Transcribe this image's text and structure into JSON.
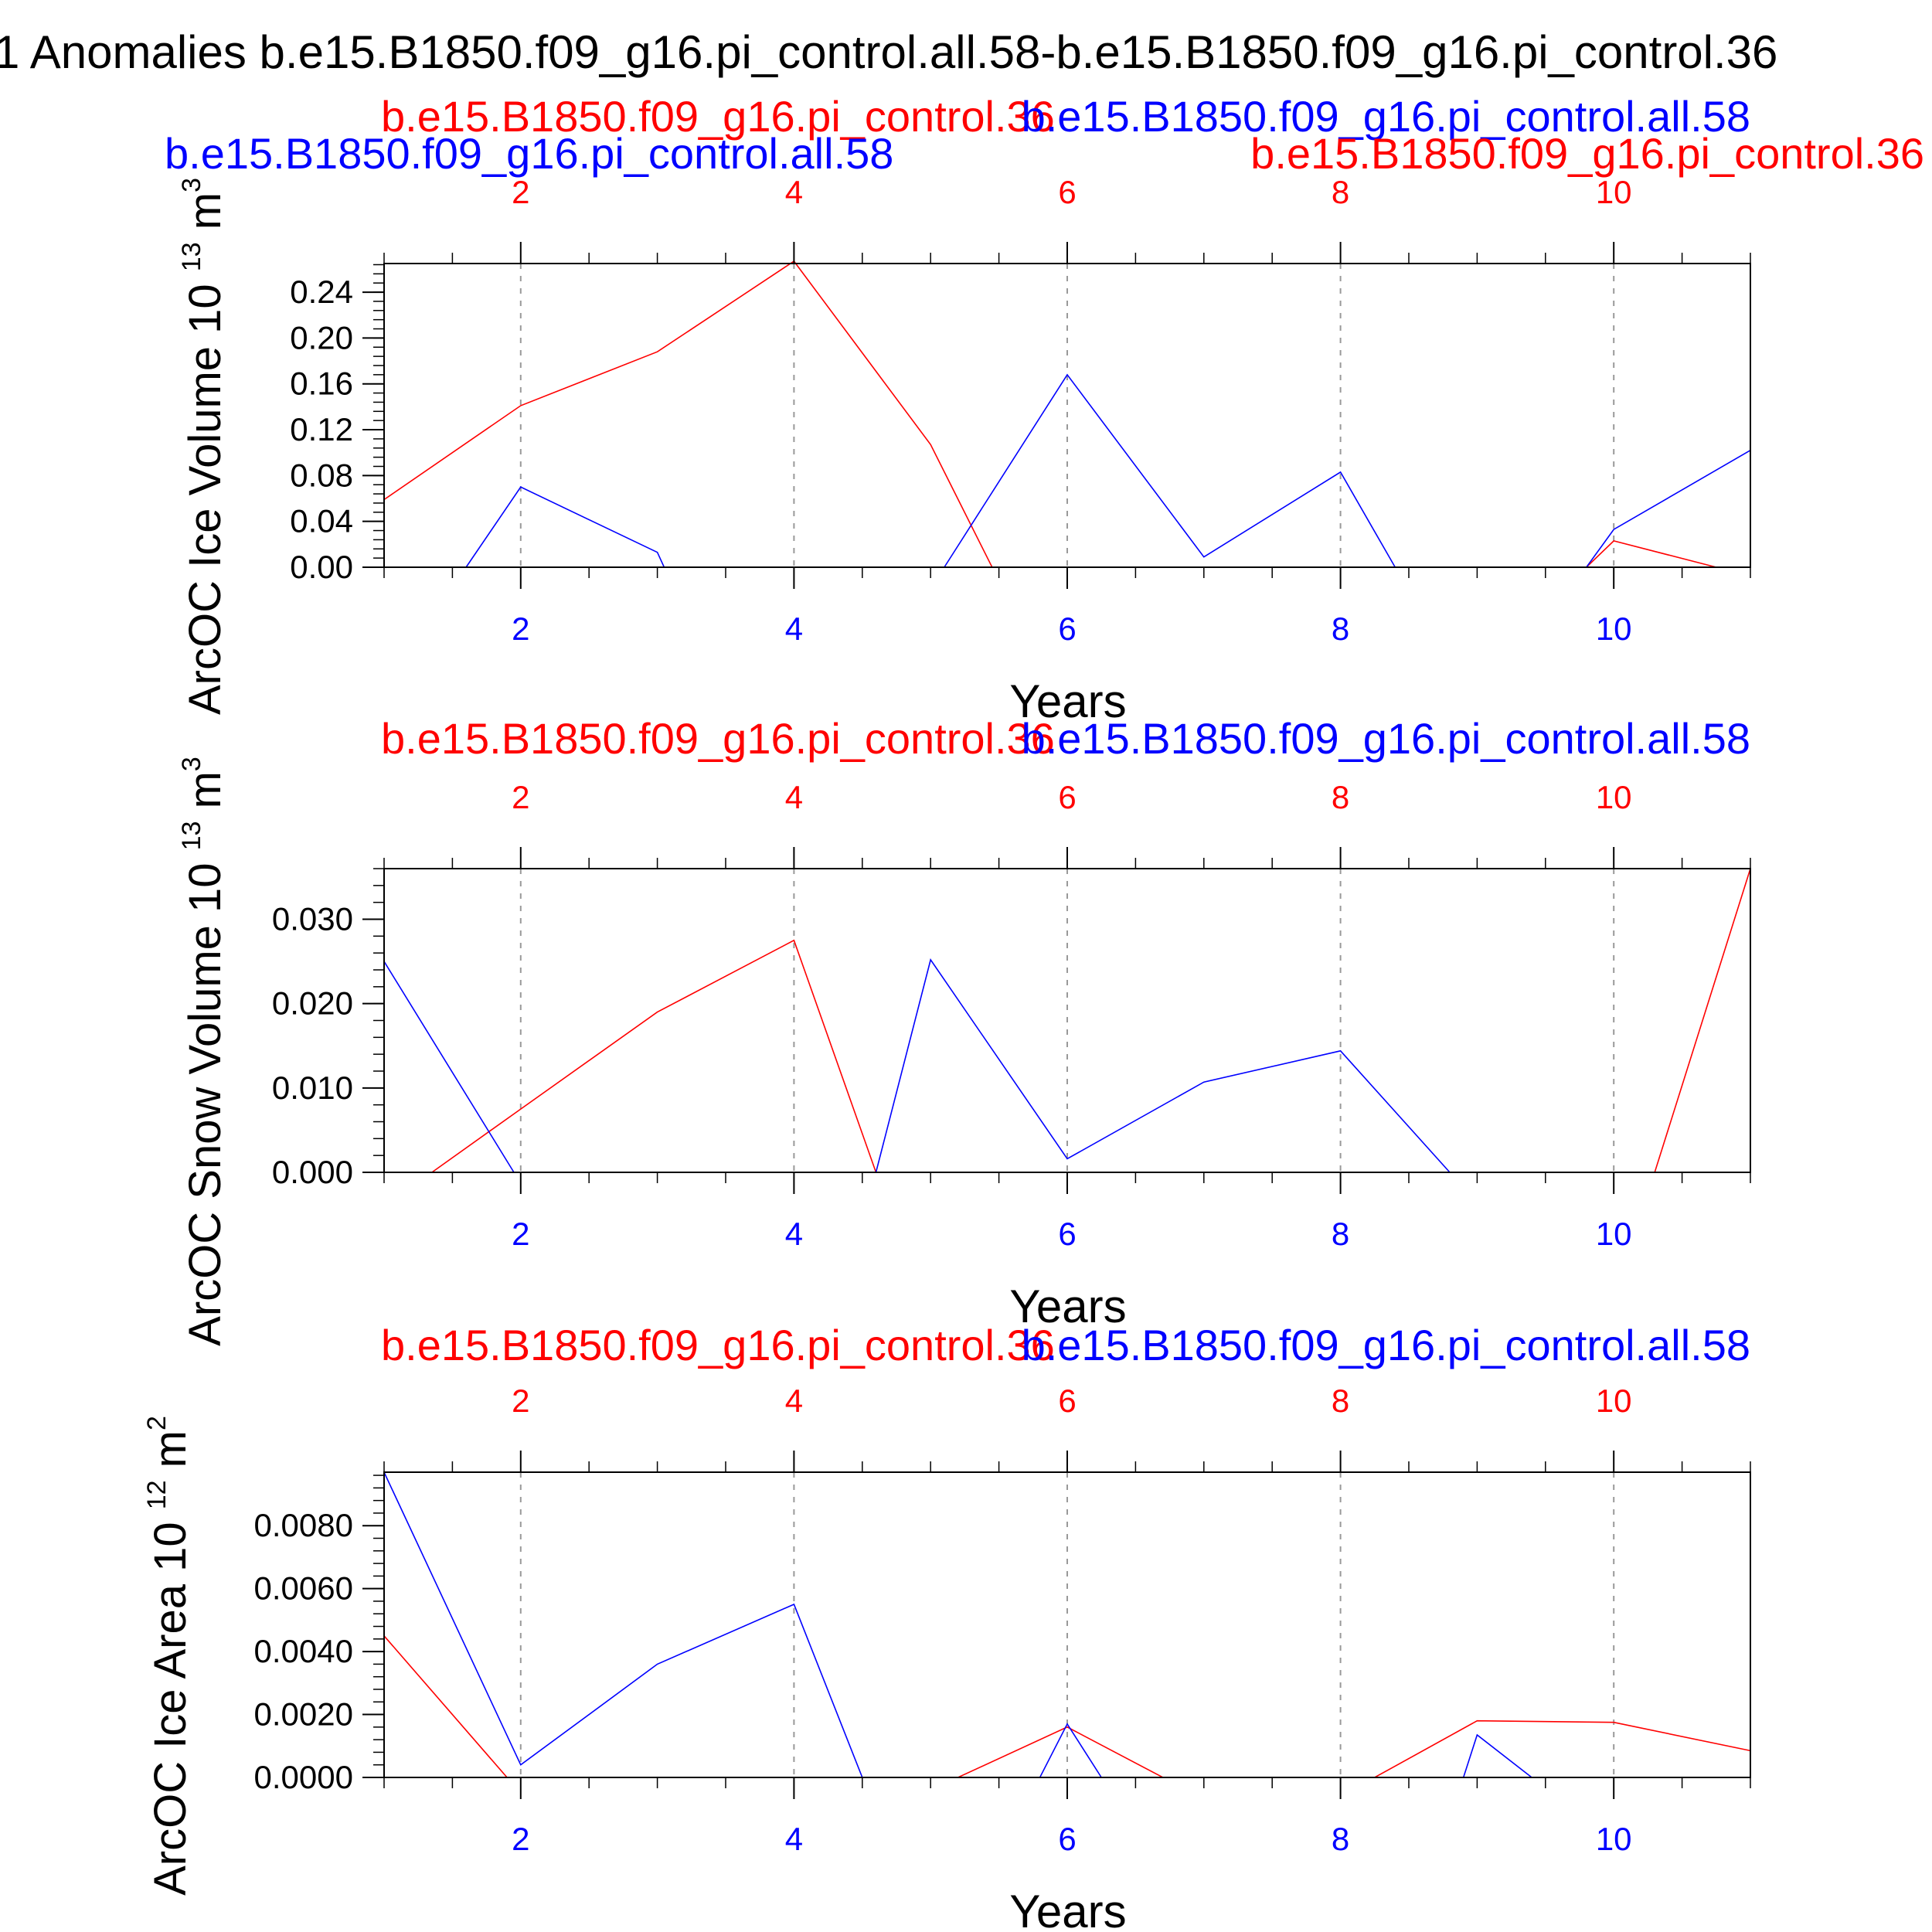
{
  "title": "1 Anomalies b.e15.B1850.f09_g16.pi_control.all.58-b.e15.B1850.f09_g16.pi_control.36",
  "colors": {
    "red": "#ff0000",
    "blue": "#0000ff",
    "axis": "#000000",
    "grid": "#999999"
  },
  "chart_data": [
    {
      "type": "line",
      "ylabel": "ArcOC Ice Volume 10",
      "yexp": "13",
      "yunit": "m",
      "yunitexp": "3",
      "xlabel": "Years",
      "xlim": [
        1,
        11
      ],
      "ylim": [
        0,
        0.265
      ],
      "yticks": [
        0,
        0.04,
        0.08,
        0.12,
        0.16,
        0.2,
        0.24
      ],
      "ytick_labels": [
        "0.00",
        "0.04",
        "0.08",
        "0.12",
        "0.16",
        "0.20",
        "0.24"
      ],
      "top_ticks": [
        2,
        4,
        6,
        8,
        10
      ],
      "top_tick_labels": [
        "2",
        "4",
        "6",
        "8",
        "10"
      ],
      "bottom_ticks": [
        2,
        4,
        6,
        8,
        10
      ],
      "bottom_tick_labels": [
        "2",
        "4",
        "6",
        "8",
        "10"
      ],
      "header_labels": [
        {
          "text": "b.e15.B1850.f09_g16.pi_control.36",
          "color": "red"
        },
        {
          "text": "b.e15.B1850.f09_g16.pi_control.all.58",
          "color": "blue"
        },
        {
          "text": "b.e15.B1850.f09_g16.pi_control.all.58",
          "color": "blue"
        },
        {
          "text": "b.e15.B1850.f09_g16.pi_control.36",
          "color": "red"
        }
      ],
      "series": [
        {
          "color": "red",
          "x": [
            1,
            2,
            3,
            4,
            5,
            5.45,
            9.8,
            10,
            10.75
          ],
          "y": [
            0.059,
            0.141,
            0.188,
            0.267,
            0.107,
            0,
            0,
            0.023,
            0
          ]
        },
        {
          "color": "blue",
          "x": [
            1.6,
            2,
            3,
            3.05,
            5.1,
            6,
            7,
            8,
            8.4,
            9.8,
            10,
            11
          ],
          "y": [
            0,
            0.07,
            0.013,
            0,
            0,
            0.168,
            0.009,
            0.083,
            0,
            0,
            0.033,
            0.102
          ]
        }
      ]
    },
    {
      "type": "line",
      "ylabel": "ArcOC Snow Volume 10",
      "yexp": "13",
      "yunit": "m",
      "yunitexp": "3",
      "xlabel": "Years",
      "xlim": [
        1,
        11
      ],
      "ylim": [
        0,
        0.036
      ],
      "yticks": [
        0,
        0.01,
        0.02,
        0.03
      ],
      "ytick_labels": [
        "0.000",
        "0.010",
        "0.020",
        "0.030"
      ],
      "top_ticks": [
        2,
        4,
        6,
        8,
        10
      ],
      "top_tick_labels": [
        "2",
        "4",
        "6",
        "8",
        "10"
      ],
      "bottom_ticks": [
        2,
        4,
        6,
        8,
        10
      ],
      "bottom_tick_labels": [
        "2",
        "4",
        "6",
        "8",
        "10"
      ],
      "header_labels": [
        {
          "text": "b.e15.B1850.f09_g16.pi_control.36",
          "color": "red"
        },
        {
          "text": "b.e15.B1850.f09_g16.pi_control.all.58",
          "color": "blue"
        }
      ],
      "series": [
        {
          "color": "red",
          "x": [
            1.35,
            2,
            3,
            4,
            4.6,
            10.3,
            11
          ],
          "y": [
            0,
            0.0075,
            0.019,
            0.0275,
            0,
            0,
            0.036
          ]
        },
        {
          "color": "blue",
          "x": [
            1,
            1.95,
            4.6,
            5,
            6,
            7,
            8,
            8.8
          ],
          "y": [
            0.025,
            0,
            0,
            0.0252,
            0.0016,
            0.0107,
            0.0144,
            0
          ]
        }
      ]
    },
    {
      "type": "line",
      "ylabel": "ArcOC Ice Area 10",
      "yexp": "12",
      "yunit": "m",
      "yunitexp": "2",
      "xlabel": "Years",
      "xlim": [
        1,
        11
      ],
      "ylim": [
        0,
        0.0097
      ],
      "yticks": [
        0,
        0.002,
        0.004,
        0.006,
        0.008
      ],
      "ytick_labels": [
        "0.0000",
        "0.0020",
        "0.0040",
        "0.0060",
        "0.0080"
      ],
      "top_ticks": [
        2,
        4,
        6,
        8,
        10
      ],
      "top_tick_labels": [
        "2",
        "4",
        "6",
        "8",
        "10"
      ],
      "bottom_ticks": [
        2,
        4,
        6,
        8,
        10
      ],
      "bottom_tick_labels": [
        "2",
        "4",
        "6",
        "8",
        "10"
      ],
      "header_labels": [
        {
          "text": "b.e15.B1850.f09_g16.pi_control.36",
          "color": "red"
        },
        {
          "text": "b.e15.B1850.f09_g16.pi_control.all.58",
          "color": "blue"
        }
      ],
      "series": [
        {
          "color": "red",
          "x": [
            1,
            1.9,
            5.2,
            6,
            6.7,
            8.25,
            9,
            10,
            11
          ],
          "y": [
            0.0045,
            0,
            0,
            0.0016,
            0,
            0,
            0.0018,
            0.00175,
            0.00085
          ]
        },
        {
          "color": "blue",
          "x": [
            1,
            2,
            3,
            4,
            4.5,
            5.8,
            6,
            6.25,
            8.9,
            9,
            9.4
          ],
          "y": [
            0.0097,
            0.0004,
            0.0036,
            0.0055,
            0,
            0,
            0.0017,
            0,
            0,
            0.00135,
            0
          ]
        }
      ]
    }
  ]
}
